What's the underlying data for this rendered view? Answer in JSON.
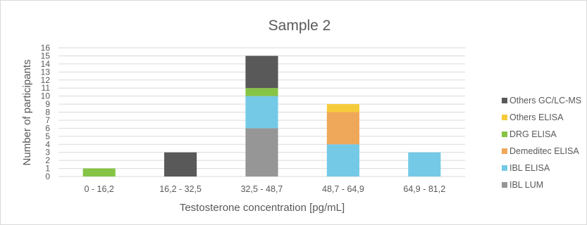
{
  "chart_data": {
    "type": "bar",
    "stacked": true,
    "title": "Sample 2",
    "xlabel": "Testosterone concentration [pg/mL]",
    "ylabel": "Number of participants",
    "categories": [
      "0 - 16,2",
      "16,2 - 32,5",
      "32,5 - 48,7",
      "48,7 - 64,9",
      "64,9 - 81,2"
    ],
    "ylim": [
      0,
      16
    ],
    "yticks": [
      "0",
      "1",
      "2",
      "3",
      "4",
      "5",
      "6",
      "7",
      "8",
      "9",
      "10",
      "11",
      "12",
      "13",
      "14",
      "15",
      "16"
    ],
    "grid": true,
    "legend_position": "right",
    "series": [
      {
        "name": "IBL LUM",
        "color": "#969696",
        "values": [
          0,
          0,
          6,
          0,
          0
        ]
      },
      {
        "name": "IBL ELISA",
        "color": "#74c9e7",
        "values": [
          0,
          0,
          4,
          4,
          3
        ]
      },
      {
        "name": "Demeditec ELISA",
        "color": "#efa85a",
        "values": [
          0,
          0,
          0,
          4,
          0
        ]
      },
      {
        "name": "DRG ELISA",
        "color": "#86c445",
        "values": [
          1,
          0,
          1,
          0,
          0
        ]
      },
      {
        "name": "Others ELISA",
        "color": "#f5cb3c",
        "values": [
          0,
          0,
          0,
          1,
          0
        ]
      },
      {
        "name": "Others GC/LC-MS",
        "color": "#595959",
        "values": [
          0,
          3,
          4,
          0,
          0
        ]
      }
    ]
  }
}
